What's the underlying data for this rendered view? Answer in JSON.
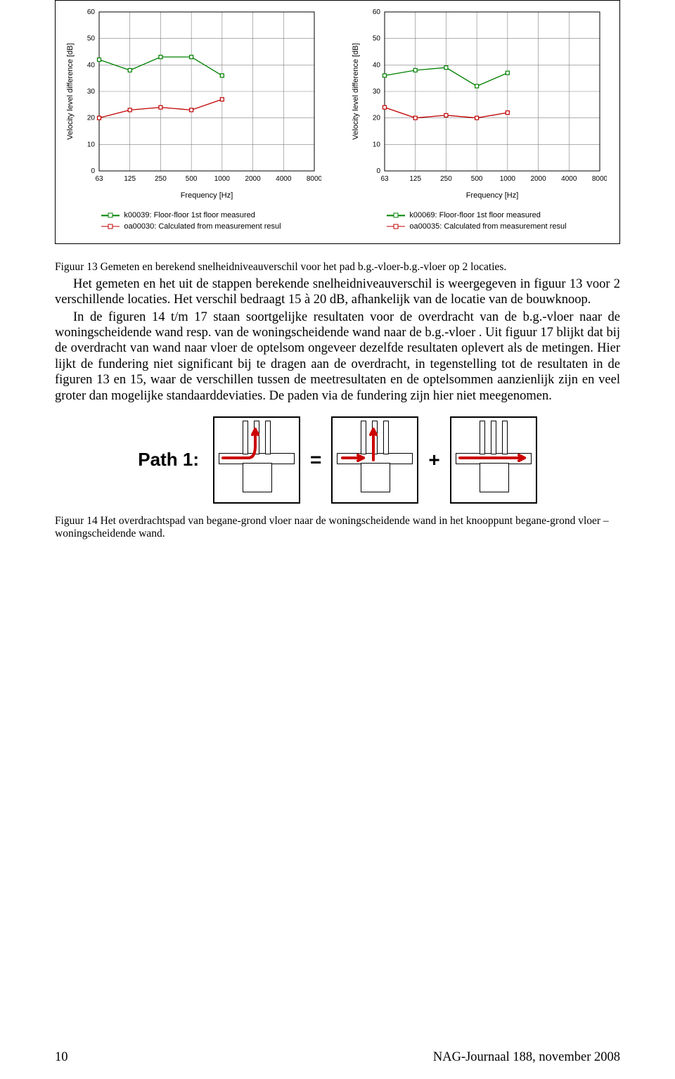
{
  "chart_common": {
    "ylabel": "Velocity level difference [dB]",
    "xlabel": "Frequency [Hz]",
    "xticks": [
      "63",
      "125",
      "250",
      "500",
      "1000",
      "2000",
      "4000",
      "8000"
    ],
    "ylim": [
      0,
      60
    ],
    "ytick_step": 10,
    "grid_color": "#808080",
    "border_color": "#000000",
    "background_color": "#ffffff",
    "label_fontsize": 11,
    "tick_fontsize": 10
  },
  "chart_left": {
    "series": [
      {
        "label": "k00039: Floor-floor 1st floor measured",
        "color": "#008000",
        "marker": "square",
        "values": [
          42,
          38,
          43,
          43,
          36,
          null,
          null,
          null
        ]
      },
      {
        "label": "oa00030: Calculated from measurement resul",
        "color": "#c00000",
        "marker": "square",
        "values": [
          20,
          23,
          24,
          23,
          27,
          null,
          null,
          null
        ]
      }
    ]
  },
  "chart_right": {
    "series": [
      {
        "label": "k00069: Floor-floor 1st floor measured",
        "color": "#008000",
        "marker": "square",
        "values": [
          36,
          38,
          39,
          32,
          37,
          null,
          null,
          null
        ]
      },
      {
        "label": "oa00035: Calculated from measurement resul",
        "color": "#c00000",
        "marker": "square",
        "values": [
          24,
          20,
          21,
          20,
          22,
          null,
          null,
          null
        ]
      }
    ]
  },
  "fig13_caption": "Figuur 13 Gemeten en berekend snelheidniveauverschil voor het pad b.g.-vloer-b.g.-vloer op 2 locaties.",
  "body_p1": "Het gemeten en het uit de stappen berekende snelheidniveauverschil is weergegeven in figuur 13 voor 2 verschillende locaties. Het verschil bedraagt 15 à 20 dB, afhankelijk van de locatie van de bouwknoop.",
  "body_p2": "In de figuren 14 t/m 17 staan soortgelijke resultaten voor de overdracht van de b.g.-vloer naar de woningscheidende wand resp. van de woningscheidende wand naar de b.g.-vloer . Uit figuur 17 blijkt dat bij de overdracht van wand naar vloer de optelsom ongeveer dezelfde resultaten oplevert als de metingen. Hier lijkt de fundering niet significant bij te dragen aan de overdracht, in tegenstelling tot de resultaten in de figuren 13 en 15, waar de verschillen tussen de meetresultaten en de optelsommen aanzienlijk zijn en veel groter dan mogelijke standaarddeviaties. De paden via de fundering zijn hier niet meegenomen.",
  "path_label": "Path 1:",
  "path_eq": "=",
  "path_plus": "+",
  "path_arrow_color": "#cc0000",
  "path_line_color": "#000000",
  "fig14_caption": "Figuur 14 Het overdrachtspad van begane-grond vloer naar de woningscheidende wand in het knooppunt begane-grond vloer – woningscheidende wand.",
  "footer_page": "10",
  "footer_journal": "NAG-Journaal 188, november 2008"
}
